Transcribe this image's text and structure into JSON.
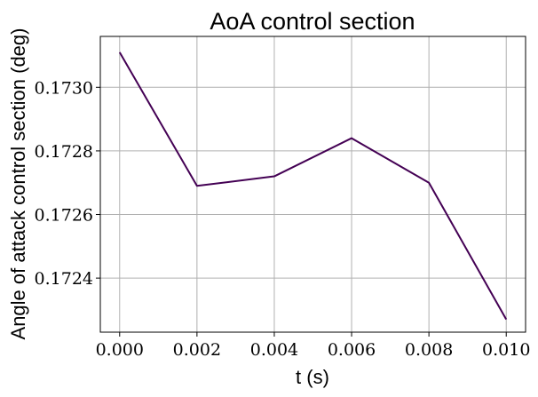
{
  "chart_data": {
    "type": "line",
    "title": "AoA control section",
    "xlabel": "t (s)",
    "ylabel": "Angle of attack control section (deg)",
    "x": [
      0.0,
      0.002,
      0.004,
      0.006,
      0.008,
      0.01
    ],
    "series": [
      {
        "values": [
          0.17311,
          0.17269,
          0.17272,
          0.17284,
          0.1727,
          0.17227
        ],
        "color": "#440154"
      }
    ],
    "xlim": [
      -0.0005,
      0.0105
    ],
    "ylim": [
      0.17223,
      0.17316
    ],
    "xticks": [
      0.0,
      0.002,
      0.004,
      0.006,
      0.008,
      0.01
    ],
    "xtick_labels": [
      "0.000",
      "0.002",
      "0.004",
      "0.006",
      "0.008",
      "0.010"
    ],
    "yticks": [
      0.1724,
      0.1726,
      0.1728,
      0.173
    ],
    "ytick_labels": [
      "0.1724",
      "0.1726",
      "0.1728",
      "0.1730"
    ],
    "grid": true,
    "legend": "none"
  }
}
